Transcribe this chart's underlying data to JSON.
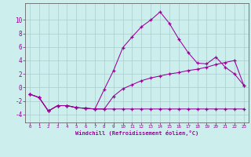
{
  "xlabel": "Windchill (Refroidissement éolien,°C)",
  "background_color": "#cceeed",
  "line_color": "#990099",
  "grid_color": "#aacccc",
  "xlim": [
    -0.5,
    23.5
  ],
  "ylim": [
    -5.2,
    12.5
  ],
  "yticks": [
    -4,
    -2,
    0,
    2,
    4,
    6,
    8,
    10
  ],
  "xticks": [
    0,
    1,
    2,
    3,
    4,
    5,
    6,
    7,
    8,
    9,
    10,
    11,
    12,
    13,
    14,
    15,
    16,
    17,
    18,
    19,
    20,
    21,
    22,
    23
  ],
  "line1_x": [
    0,
    1,
    2,
    3,
    4,
    5,
    6,
    7,
    8,
    9,
    10,
    11,
    12,
    13,
    14,
    15,
    16,
    17,
    18,
    19,
    20,
    21,
    22,
    23
  ],
  "line1_y": [
    -1.0,
    -1.5,
    -3.5,
    -2.7,
    -2.7,
    -3.0,
    -3.1,
    -3.2,
    -3.2,
    -3.2,
    -3.2,
    -3.2,
    -3.2,
    -3.2,
    -3.2,
    -3.2,
    -3.2,
    -3.2,
    -3.2,
    -3.2,
    -3.2,
    -3.2,
    -3.2,
    -3.2
  ],
  "line2_x": [
    0,
    1,
    2,
    3,
    4,
    5,
    6,
    7,
    8,
    9,
    10,
    11,
    12,
    13,
    14,
    15,
    16,
    17,
    18,
    19,
    20,
    21,
    22,
    23
  ],
  "line2_y": [
    -1.0,
    -1.5,
    -3.5,
    -2.7,
    -2.7,
    -3.0,
    -3.1,
    -3.2,
    -0.3,
    2.5,
    5.9,
    7.5,
    9.0,
    10.0,
    11.2,
    9.5,
    7.2,
    5.2,
    3.6,
    3.5,
    4.5,
    3.0,
    2.0,
    0.3
  ],
  "line3_x": [
    0,
    1,
    2,
    3,
    4,
    5,
    6,
    7,
    8,
    9,
    10,
    11,
    12,
    13,
    14,
    15,
    16,
    17,
    18,
    19,
    20,
    21,
    22,
    23
  ],
  "line3_y": [
    -1.0,
    -1.5,
    -3.5,
    -2.7,
    -2.7,
    -3.0,
    -3.1,
    -3.2,
    -3.2,
    -1.3,
    -0.2,
    0.4,
    1.0,
    1.4,
    1.7,
    2.0,
    2.2,
    2.5,
    2.7,
    3.0,
    3.4,
    3.7,
    4.0,
    0.3
  ]
}
